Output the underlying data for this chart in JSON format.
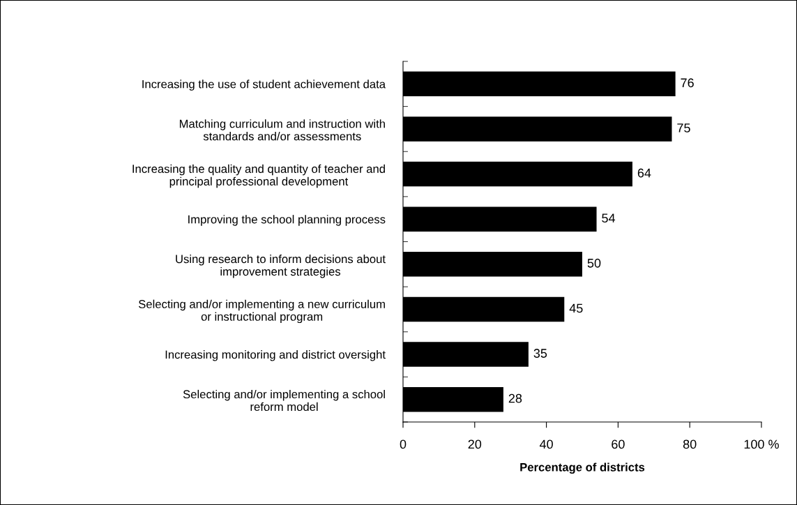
{
  "chart_data": {
    "type": "bar",
    "orientation": "horizontal",
    "xlabel": "Percentage of districts",
    "categories": [
      "Increasing the use of student achievement data",
      "Matching curriculum and instruction with\nstandards and/or assessments",
      "Increasing the quality and quantity of teacher and\nprincipal professional development",
      "Improving the school planning process",
      "Using research to inform decisions about\nimprovement strategies",
      "Selecting and/or implementing a new curriculum\nor instructional program",
      "Increasing monitoring and district oversight",
      "Selecting and/or implementing a school\nreform model"
    ],
    "values": [
      76,
      75,
      64,
      54,
      50,
      45,
      35,
      28
    ],
    "color": "#000000",
    "data_labels": true,
    "grid": false,
    "legend": false,
    "xlim": [
      0,
      100
    ],
    "xticks": [
      0,
      20,
      40,
      60,
      80,
      {
        "value": 100,
        "label": "100 %"
      }
    ]
  }
}
